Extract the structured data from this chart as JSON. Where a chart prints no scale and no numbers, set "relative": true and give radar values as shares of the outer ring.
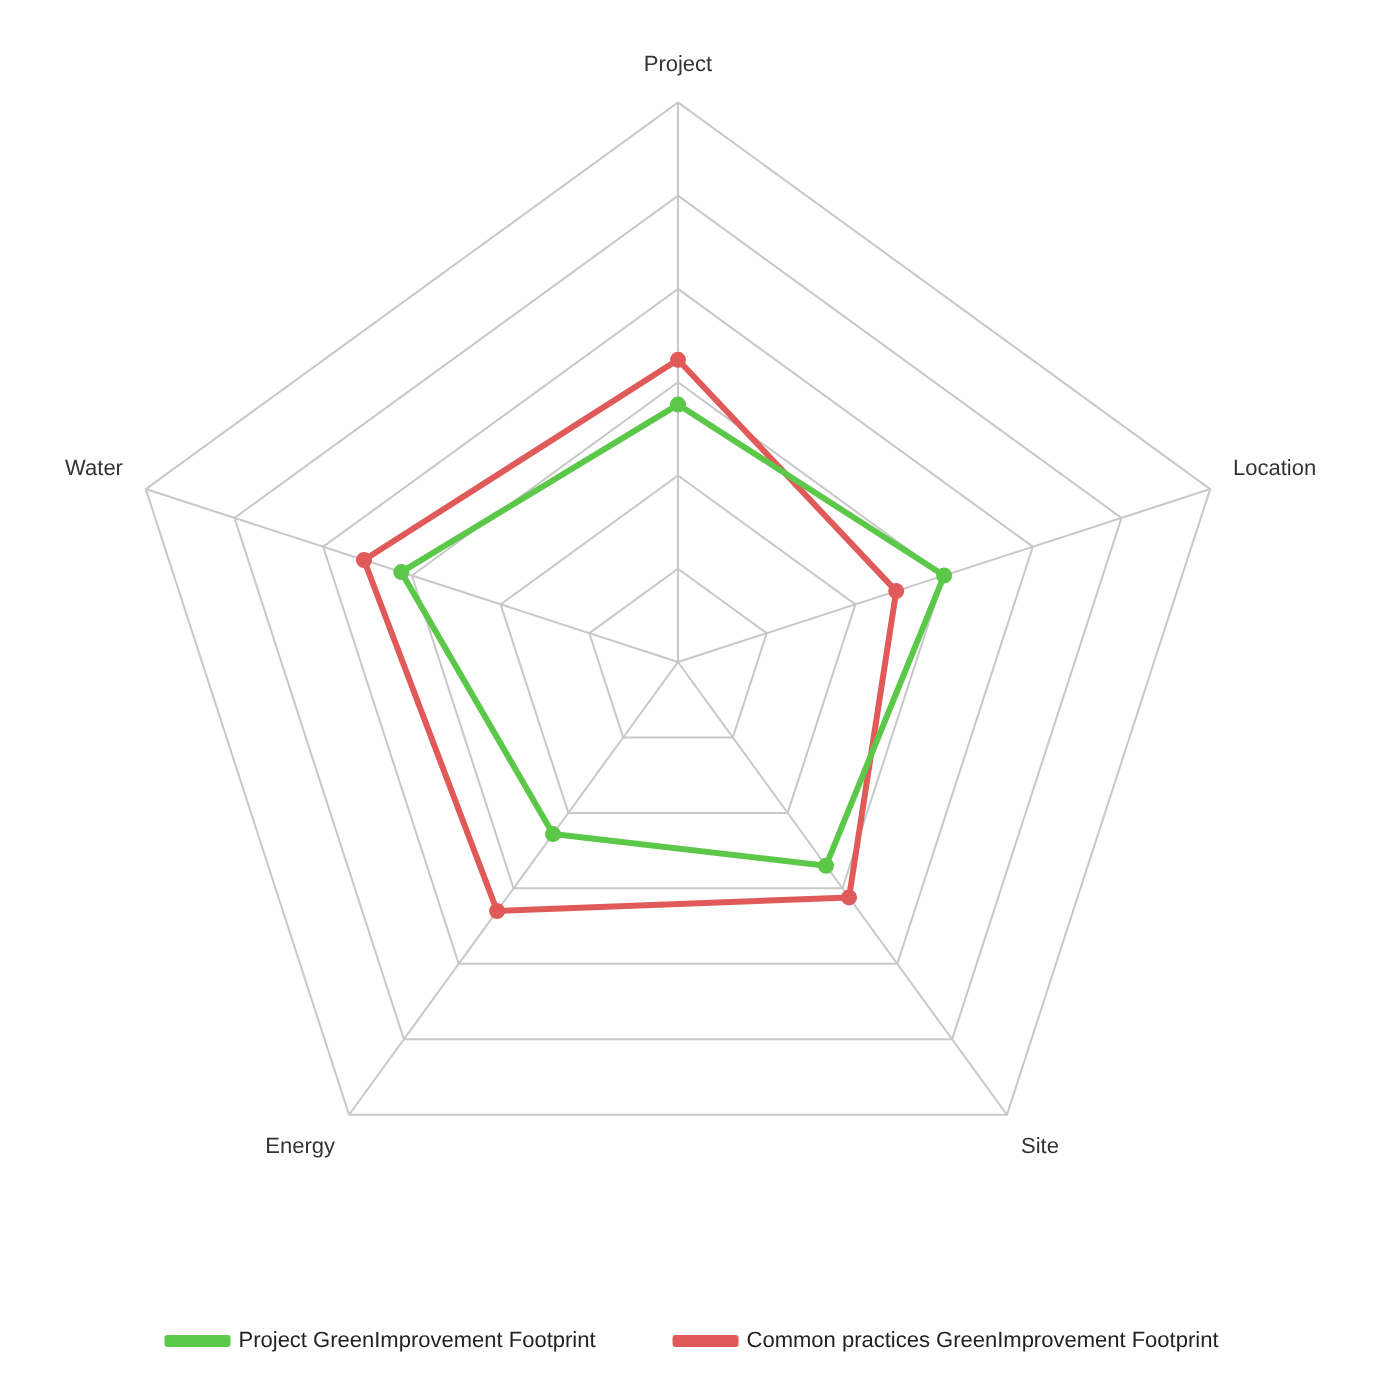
{
  "chart_data": {
    "type": "radar",
    "relative": true,
    "categories": [
      "Project",
      "Location",
      "Site",
      "Energy",
      "Water"
    ],
    "series": [
      {
        "name": "Project GreenImprovement Footprint",
        "color": "#5cc84a",
        "values": [
          0.46,
          0.5,
          0.45,
          0.38,
          0.52
        ]
      },
      {
        "name": "Common practices GreenImprovement Footprint",
        "color": "#e05a5a",
        "values": [
          0.54,
          0.41,
          0.52,
          0.55,
          0.59
        ]
      }
    ],
    "legend": "bottom",
    "marker": "circle",
    "grid": true
  }
}
